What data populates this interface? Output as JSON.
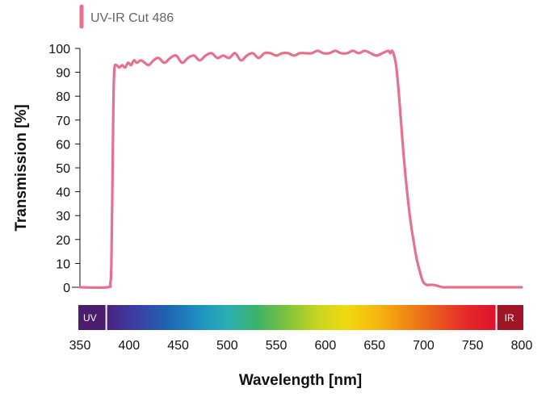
{
  "chart_data": {
    "type": "line",
    "title": "",
    "xlabel": "Wavelength [nm]",
    "ylabel": "Transmission [%]",
    "xlim": [
      350,
      800
    ],
    "ylim": [
      0,
      100
    ],
    "x_ticks": [
      350,
      400,
      450,
      500,
      550,
      600,
      650,
      700,
      750,
      800
    ],
    "y_ticks": [
      0,
      10,
      20,
      30,
      40,
      50,
      60,
      70,
      80,
      90,
      100
    ],
    "grid": false,
    "legend_position": "top-left",
    "series": [
      {
        "name": "UV-IR Cut 486",
        "color": "#e5718c",
        "x": [
          350,
          378,
          381,
          382,
          383,
          384,
          385,
          387,
          390,
          393,
          396,
          399,
          402,
          405,
          408,
          412,
          416,
          420,
          425,
          430,
          436,
          442,
          448,
          454,
          460,
          466,
          472,
          478,
          484,
          490,
          496,
          502,
          508,
          514,
          520,
          526,
          532,
          538,
          544,
          550,
          556,
          562,
          568,
          574,
          580,
          586,
          592,
          598,
          604,
          610,
          616,
          622,
          628,
          634,
          640,
          646,
          652,
          658,
          664,
          666,
          668,
          670,
          672,
          674,
          676,
          678,
          680,
          682,
          684,
          686,
          688,
          690,
          692,
          694,
          696,
          698,
          700,
          703,
          706,
          710,
          715,
          720,
          725,
          730,
          800
        ],
        "values": [
          0,
          0,
          2,
          10,
          40,
          75,
          91,
          93,
          92,
          93,
          92,
          94,
          93,
          95,
          94,
          95,
          94,
          93,
          95,
          96,
          94,
          96,
          97,
          94,
          96,
          97,
          95,
          97,
          98,
          96,
          97,
          96,
          98,
          95,
          97,
          98,
          96,
          98,
          98,
          97,
          98,
          98,
          97,
          98,
          98,
          98,
          99,
          98,
          98,
          99,
          98,
          98,
          99,
          98,
          99,
          98,
          97,
          98,
          99,
          98,
          99,
          97,
          93,
          85,
          75,
          64,
          54,
          45,
          37,
          30,
          24,
          19,
          14,
          10,
          7,
          4,
          2,
          1,
          1,
          1,
          0.5,
          0,
          0,
          0,
          0
        ]
      }
    ],
    "spectrum_bar": {
      "labels": {
        "uv": "UV",
        "ir": "IR"
      },
      "uv_end": 376,
      "ir_start": 775,
      "colors": {
        "uv": "#4a1d6e",
        "ir": "#a01526",
        "stops": [
          "#4a2480",
          "#3b3fa5",
          "#1e64b0",
          "#1e8ec0",
          "#2aaeb4",
          "#3db26a",
          "#7cc23b",
          "#c6d422",
          "#f0da0f",
          "#f6b80e",
          "#f08a13",
          "#ea5a1d",
          "#e42a2a",
          "#e0122d"
        ]
      }
    }
  }
}
